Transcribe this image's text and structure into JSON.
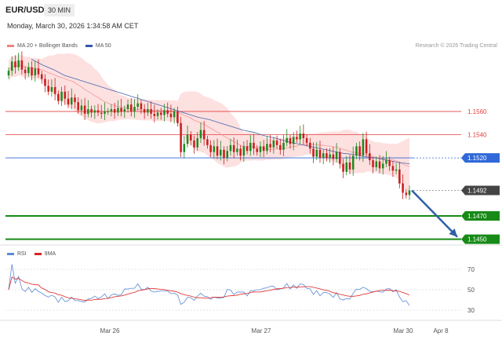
{
  "header": {
    "symbol": "EUR/USD",
    "timeframe": "30 MIN"
  },
  "timestamp": "Monday, March 30, 2026 1:34:58 AM CET",
  "legend": [
    {
      "label": "MA 20 + Bollinger Bands",
      "color": "#f08080"
    },
    {
      "label": "MA 50",
      "color": "#3355aa"
    }
  ],
  "credit": "Research © 2026 Trading Central",
  "rsi_legend": [
    {
      "label": "RSI",
      "color": "#5b8bd6"
    },
    {
      "label": "9MA",
      "color": "#dd2222"
    }
  ],
  "colors": {
    "up": "#1f8a1f",
    "down": "#c81e1e",
    "support": "#178a17",
    "resistance": "#e04040",
    "pivot": "#2f68d8",
    "arrow": "#2f5fa8"
  },
  "chart_data": [
    {
      "type": "candlestick",
      "y_range": [
        1.1445,
        1.161
      ],
      "x_labels": [
        "Mar 26",
        "Mar 27",
        "Mar 30",
        "Apr 8"
      ],
      "levels": [
        {
          "value": 1.156,
          "label": "1.1560",
          "kind": "resistance"
        },
        {
          "value": 1.154,
          "label": "1.1540",
          "kind": "resistance"
        },
        {
          "value": 1.152,
          "label": "1.1520",
          "kind": "pivot"
        },
        {
          "value": 1.1492,
          "label": "1.1492",
          "kind": "last"
        },
        {
          "value": 1.147,
          "label": "1.1470",
          "kind": "support"
        },
        {
          "value": 1.145,
          "label": "1.1450",
          "kind": "support"
        }
      ],
      "last_price": 1.1492,
      "close_series": [
        1.1595,
        1.1603,
        1.1598,
        1.1604,
        1.1596,
        1.1593,
        1.1598,
        1.1591,
        1.1597,
        1.1592,
        1.1588,
        1.1582,
        1.1577,
        1.1581,
        1.1575,
        1.1569,
        1.1577,
        1.1571,
        1.1566,
        1.1572,
        1.1568,
        1.1561,
        1.1565,
        1.1558,
        1.1562,
        1.1559,
        1.1561,
        1.1559,
        1.1558,
        1.156,
        1.156,
        1.1562,
        1.1559,
        1.1563,
        1.156,
        1.1562,
        1.1566,
        1.156,
        1.1564,
        1.1567,
        1.1562,
        1.1559,
        1.1562,
        1.1558,
        1.1556,
        1.1559,
        1.1557,
        1.1561,
        1.1558,
        1.1555,
        1.156,
        1.155,
        1.1525,
        1.1532,
        1.154,
        1.1535,
        1.1529,
        1.1537,
        1.1544,
        1.1536,
        1.1531,
        1.1525,
        1.153,
        1.1522,
        1.1527,
        1.152,
        1.1526,
        1.1531,
        1.1525,
        1.1528,
        1.1522,
        1.153,
        1.1526,
        1.1533,
        1.1528,
        1.1525,
        1.153,
        1.1526,
        1.1532,
        1.1529,
        1.1535,
        1.1531,
        1.1527,
        1.1533,
        1.1537,
        1.1532,
        1.1538,
        1.1536,
        1.1541,
        1.1537,
        1.1533,
        1.1528,
        1.1521,
        1.1527,
        1.152,
        1.1524,
        1.152,
        1.1523,
        1.1519,
        1.1525,
        1.1515,
        1.1508,
        1.1516,
        1.151,
        1.1522,
        1.153,
        1.1522,
        1.1536,
        1.1524,
        1.1518,
        1.1512,
        1.1517,
        1.1511,
        1.1515,
        1.1518,
        1.1513,
        1.1509,
        1.151,
        1.1498,
        1.149,
        1.1488,
        1.1492
      ],
      "ma50_series": [
        1.1605,
        1.16,
        1.1596,
        1.1591,
        1.1588,
        1.1585,
        1.1582,
        1.1579,
        1.1576,
        1.1573,
        1.157,
        1.1567,
        1.1564,
        1.1561,
        1.1558,
        1.1555,
        1.1553,
        1.155,
        1.1547,
        1.1544,
        1.1542,
        1.1539,
        1.1537,
        1.1534,
        1.1532,
        1.153,
        1.1528,
        1.1526,
        1.1524,
        1.1523,
        1.1521,
        1.152,
        1.1518,
        1.1516,
        1.1515
      ],
      "rsi": {
        "range": [
          20,
          80
        ],
        "ticks": [
          70,
          50,
          30
        ]
      }
    }
  ]
}
